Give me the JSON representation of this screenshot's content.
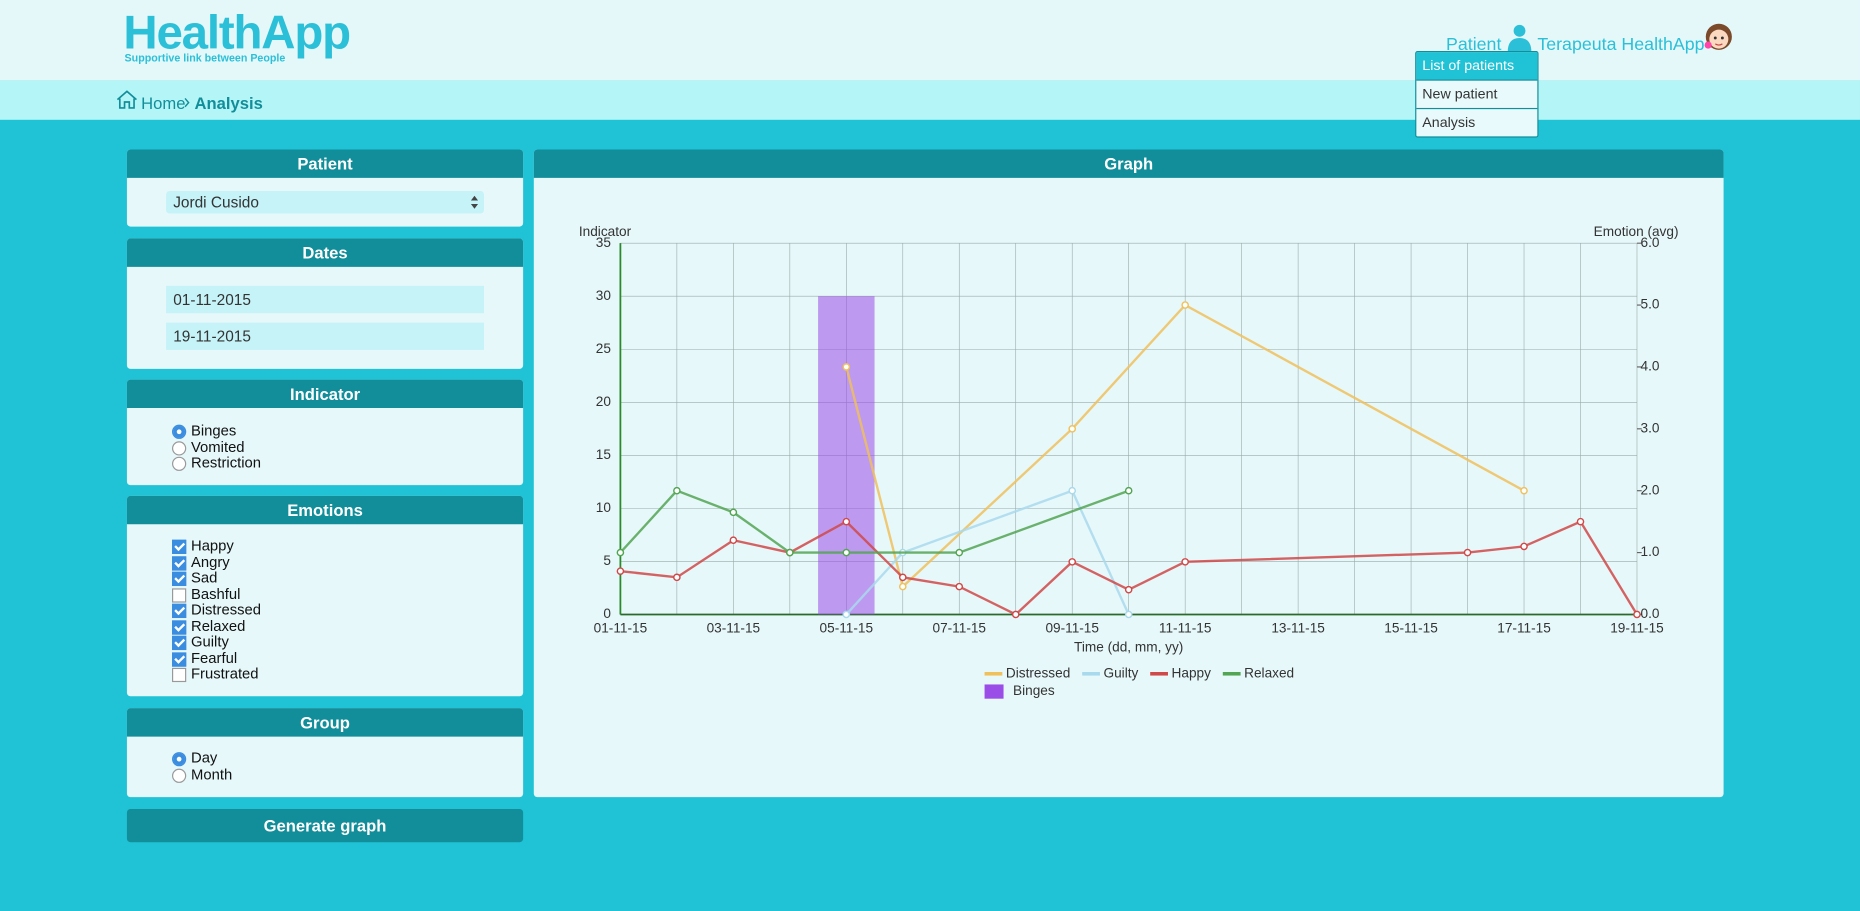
{
  "header": {
    "logo": "HealthApp",
    "tagline": "Supportive link between People",
    "nav": [
      "Patient",
      "Terapeuta HealthApp"
    ]
  },
  "menu": [
    "List of patients",
    "New patient",
    "Analysis"
  ],
  "breadcrumb": [
    "Home",
    "Analysis"
  ],
  "panels": {
    "patient": {
      "title": "Patient",
      "selected": "Jordi Cusido"
    },
    "dates": {
      "title": "Dates",
      "from": "01-11-2015",
      "to": "19-11-2015"
    },
    "indicator": {
      "title": "Indicator",
      "options": [
        {
          "label": "Binges",
          "checked": true
        },
        {
          "label": "Vomited",
          "checked": false
        },
        {
          "label": "Restriction",
          "checked": false
        }
      ]
    },
    "emotions": {
      "title": "Emotions",
      "options": [
        {
          "label": "Happy",
          "checked": true
        },
        {
          "label": "Angry",
          "checked": true
        },
        {
          "label": "Sad",
          "checked": true
        },
        {
          "label": "Bashful",
          "checked": false
        },
        {
          "label": "Distressed",
          "checked": true
        },
        {
          "label": "Relaxed",
          "checked": true
        },
        {
          "label": "Guilty",
          "checked": true
        },
        {
          "label": "Fearful",
          "checked": true
        },
        {
          "label": "Frustrated",
          "checked": false
        }
      ]
    },
    "group": {
      "title": "Group",
      "options": [
        {
          "label": "Day",
          "checked": true
        },
        {
          "label": "Month",
          "checked": false
        }
      ]
    },
    "button": "Generate graph"
  },
  "graph_title": "Graph",
  "chart_data": {
    "type": "line",
    "xlabel": "Time (dd, mm, yy)",
    "ylabel": "Indicator",
    "y2label": "Emotion (avg)",
    "xlim": [
      "01-11-15",
      "19-11-15"
    ],
    "xticks": [
      "01-11-15",
      "03-11-15",
      "05-11-15",
      "07-11-15",
      "09-11-15",
      "11-11-15",
      "13-11-15",
      "15-11-15",
      "17-11-15",
      "19-11-15"
    ],
    "ylim": [
      0,
      35
    ],
    "yticks": [
      0,
      5,
      10,
      15,
      20,
      25,
      30,
      35
    ],
    "y2lim": [
      0,
      6
    ],
    "y2ticks": [
      {
        "value": 0,
        "label": "0.0"
      },
      {
        "value": 1,
        "label": "1.0"
      },
      {
        "value": 2,
        "label": "2.0"
      },
      {
        "value": 3,
        "label": "3.0"
      },
      {
        "value": 4,
        "label": "4.0"
      },
      {
        "value": 5,
        "label": "5.0"
      },
      {
        "value": 6,
        "label": "6.0"
      }
    ],
    "grid": true,
    "series": [
      {
        "name": "Distressed",
        "color": "#f0c05a",
        "axis": "y2",
        "x": [
          "05-11-15",
          "06-11-15",
          "09-11-15",
          "11-11-15",
          "17-11-15"
        ],
        "values": [
          4.0,
          0.45,
          3.0,
          5.0,
          2.0
        ]
      },
      {
        "name": "Guilty",
        "color": "#a9d9ec",
        "axis": "y2",
        "x": [
          "05-11-15",
          "06-11-15",
          "09-11-15",
          "10-11-15"
        ],
        "values": [
          0.0,
          1.0,
          2.0,
          0.0
        ]
      },
      {
        "name": "Happy",
        "color": "#d04848",
        "axis": "y2",
        "x": [
          "01-11-15",
          "02-11-15",
          "03-11-15",
          "04-11-15",
          "05-11-15",
          "06-11-15",
          "07-11-15",
          "08-11-15",
          "09-11-15",
          "10-11-15",
          "11-11-15",
          "16-11-15",
          "17-11-15",
          "18-11-15",
          "19-11-15"
        ],
        "values": [
          0.7,
          0.6,
          1.2,
          1.0,
          1.5,
          0.6,
          0.45,
          0,
          0.85,
          0.4,
          0.85,
          1.0,
          1.1,
          1.5,
          0
        ]
      },
      {
        "name": "Relaxed",
        "color": "#52a552",
        "axis": "y2",
        "x": [
          "01-11-15",
          "02-11-15",
          "03-11-15",
          "04-11-15",
          "05-11-15",
          "07-11-15",
          "10-11-15"
        ],
        "values": [
          1.0,
          2.0,
          1.65,
          1.0,
          1.0,
          1.0,
          2.0
        ]
      },
      {
        "name": "Binges",
        "type": "bar",
        "color": "#9b4de8",
        "x": [
          "05-11-15"
        ],
        "values": [
          30
        ]
      }
    ]
  }
}
